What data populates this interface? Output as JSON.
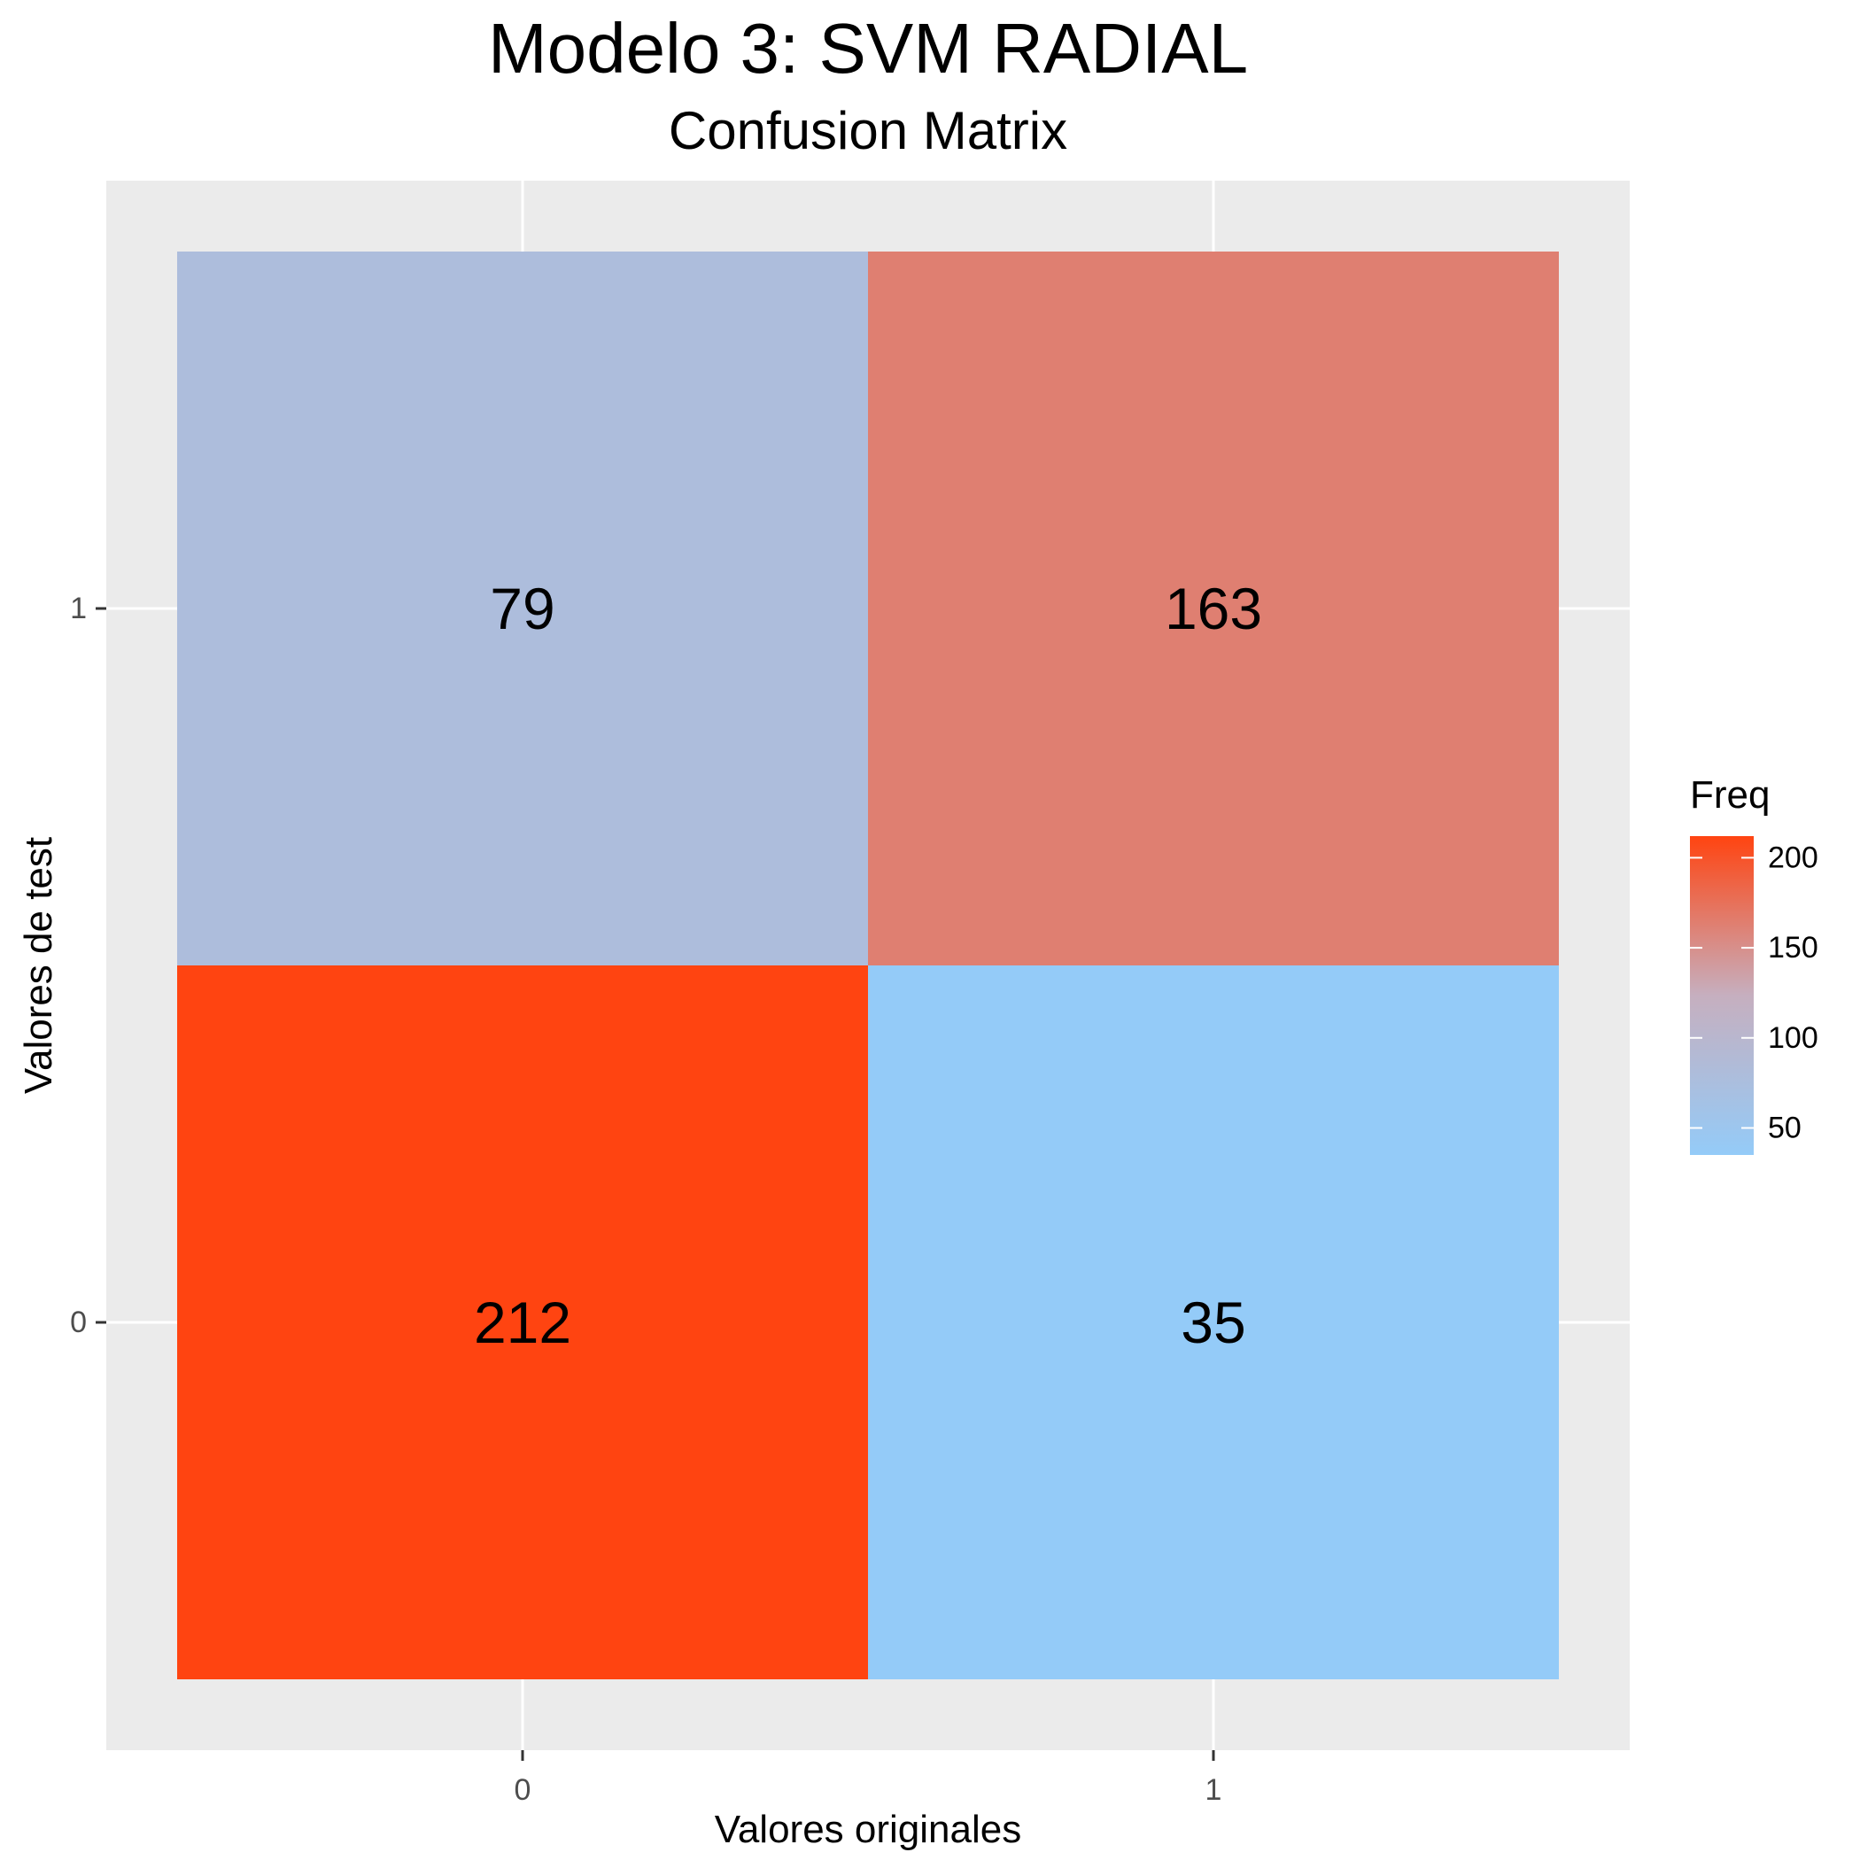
{
  "chart_data": {
    "type": "heatmap",
    "title": "Modelo 3: SVM RADIAL",
    "subtitle": "Confusion Matrix",
    "xlabel": "Valores originales",
    "ylabel": "Valores de test",
    "x_categories": [
      "0",
      "1"
    ],
    "y_categories": [
      "0",
      "1"
    ],
    "cells": [
      {
        "x": "0",
        "y": "1",
        "value": 79
      },
      {
        "x": "1",
        "y": "1",
        "value": 163
      },
      {
        "x": "0",
        "y": "0",
        "value": 212
      },
      {
        "x": "1",
        "y": "0",
        "value": 35
      }
    ],
    "legend": {
      "title": "Freq",
      "placement": "right",
      "ticks": [
        200,
        150,
        100,
        50
      ],
      "range": [
        35,
        212
      ],
      "color_low": "#94CBF8",
      "color_mid": "#C6AFBF",
      "color_high": "#FF4411"
    },
    "grid": true
  }
}
